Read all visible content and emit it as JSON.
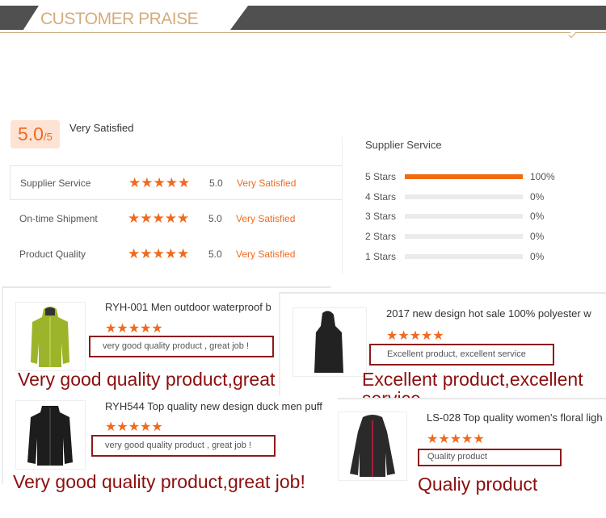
{
  "header": {
    "title": "CUSTOMER PRAISE"
  },
  "summary": {
    "score": "5.0",
    "out_of": "/5",
    "label": "Very Satisfied"
  },
  "ratings": [
    {
      "label": "Supplier Service",
      "stars": 5,
      "value": "5.0",
      "status": "Very Satisfied"
    },
    {
      "label": "On-time Shipment",
      "stars": 5,
      "value": "5.0",
      "status": "Very Satisfied"
    },
    {
      "label": "Product Quality",
      "stars": 5,
      "value": "5.0",
      "status": "Very Satisfied"
    }
  ],
  "breakdown": {
    "title": "Supplier Service",
    "rows": [
      {
        "label": "5 Stars",
        "percent": 100,
        "text": "100%"
      },
      {
        "label": "4 Stars",
        "percent": 0,
        "text": "0%"
      },
      {
        "label": "3 Stars",
        "percent": 0,
        "text": "0%"
      },
      {
        "label": "2 Stars",
        "percent": 0,
        "text": "0%"
      },
      {
        "label": "1 Stars",
        "percent": 0,
        "text": "0%"
      }
    ]
  },
  "accent": "#f06a1e",
  "star_glyph": "★★★★★",
  "reviews": [
    {
      "title": "RYH-001 Men outdoor waterproof b",
      "comment": "very good quality product , great job !",
      "caption": "Very good quality product,great job!",
      "stars": 5
    },
    {
      "title": "2017 new design hot sale 100% polyester w",
      "comment": "Excellent product, excellent service",
      "caption": "Excellent product,excellent service",
      "stars": 5
    },
    {
      "title": "RYH544 Top quality new design duck men puff",
      "comment": "very good quality product , great job !",
      "caption": "Very good quality product,great job!",
      "stars": 5
    },
    {
      "title": "LS-028 Top quality women's floral ligh",
      "comment": "Quality product",
      "caption": "Qualiy product",
      "stars": 5
    }
  ]
}
